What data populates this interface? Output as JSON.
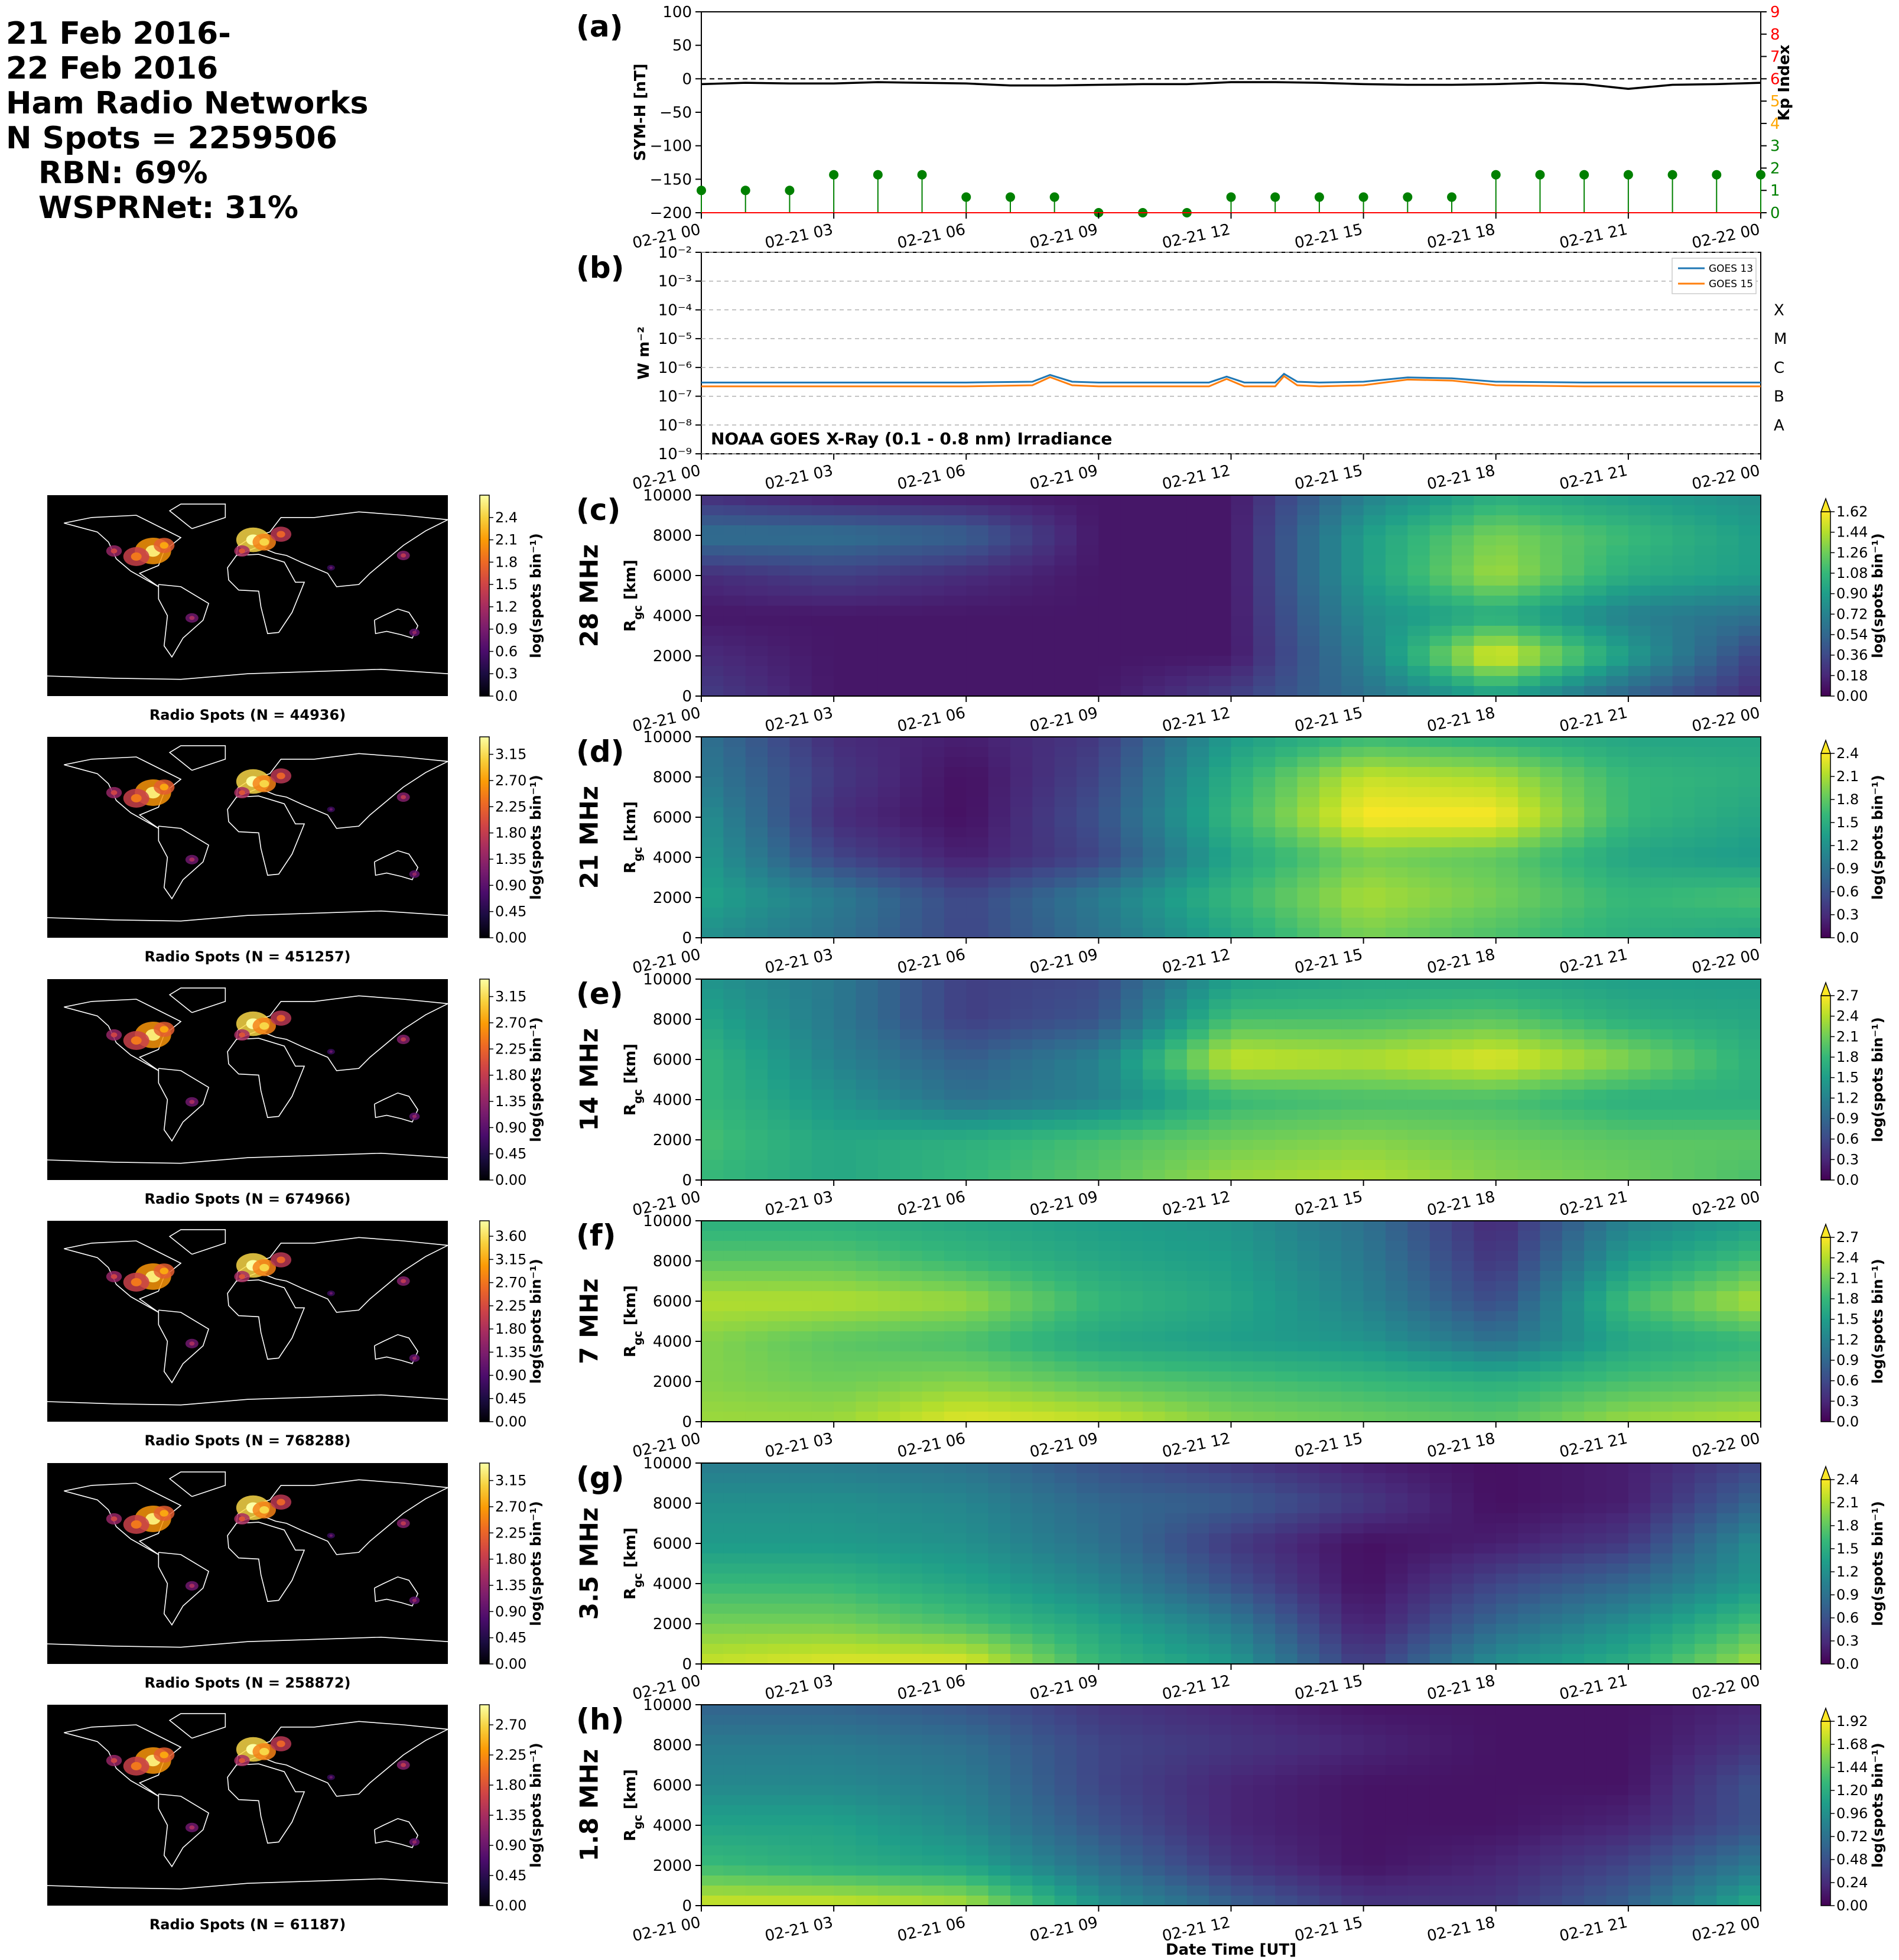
{
  "header": {
    "line1": "21 Feb 2016-",
    "line2": "22 Feb 2016",
    "line3": "Ham Radio Networks",
    "line4": "N Spots = 2259506",
    "line5": "RBN: 69%",
    "line6": "WSPRNet: 31%"
  },
  "colors": {
    "kp_bar": "#008000",
    "kp_axis": "#ff0000",
    "symh_line": "#000000",
    "goes13": "#1f77b4",
    "goes15": "#ff7f0e",
    "map_background": "#000000",
    "coastline": "#ffffff"
  },
  "time_ticks": [
    "02-21 00",
    "02-21 03",
    "02-21 06",
    "02-21 09",
    "02-21 12",
    "02-21 15",
    "02-21 18",
    "02-21 21",
    "02-22 00"
  ],
  "xlabel": "Date Time [UT]",
  "chart_data": [
    {
      "type": "line",
      "panel": "(a)",
      "ylabel": "SYM-H [nT]",
      "ylabel_right": "Kp Index",
      "ylim": [
        -200,
        100
      ],
      "yticks": [
        "100",
        "50",
        "0",
        "−50",
        "−100",
        "−150",
        "−200"
      ],
      "y2lim": [
        0,
        9
      ],
      "y2ticks": [
        "0",
        "1",
        "2",
        "3",
        "4",
        "5",
        "6",
        "7",
        "8",
        "9"
      ],
      "hline": 0,
      "symh_hours": [
        0,
        1,
        2,
        3,
        4,
        5,
        6,
        7,
        8,
        9,
        10,
        11,
        12,
        13,
        14,
        15,
        16,
        17,
        18,
        19,
        20,
        21,
        22,
        23,
        24
      ],
      "symh_values": [
        -8,
        -6,
        -7,
        -7,
        -5,
        -6,
        -7,
        -10,
        -10,
        -9,
        -8,
        -8,
        -5,
        -5,
        -6,
        -8,
        -9,
        -9,
        -8,
        -6,
        -8,
        -15,
        -9,
        -8,
        -6
      ],
      "kp_hours": [
        0,
        1,
        2,
        3,
        4,
        5,
        6,
        7,
        8,
        9,
        10,
        11,
        12,
        13,
        14,
        15,
        16,
        17,
        18,
        19,
        20,
        21,
        22,
        23,
        24
      ],
      "kp_values": [
        1,
        1,
        1,
        1.7,
        1.7,
        1.7,
        0.7,
        0.7,
        0.7,
        0,
        0,
        0,
        0.7,
        0.7,
        0.7,
        0.7,
        0.7,
        0.7,
        1.7,
        1.7,
        1.7,
        1.7,
        1.7,
        1.7,
        1.7
      ]
    },
    {
      "type": "line",
      "panel": "(b)",
      "title": "NOAA GOES X-Ray (0.1 - 0.8 nm) Irradiance",
      "ylabel": "W m⁻²",
      "yscale": "log",
      "ylim": [
        1e-09,
        0.01
      ],
      "yticks": [
        "10⁻²",
        "10⁻³",
        "10⁻⁴",
        "10⁻⁵",
        "10⁻⁶",
        "10⁻⁷",
        "10⁻⁸",
        "10⁻⁹"
      ],
      "flare_classes": [
        "X",
        "M",
        "C",
        "B",
        "A"
      ],
      "legend": "top-right",
      "series": [
        {
          "name": "GOES 13",
          "hours": [
            0,
            3,
            6,
            7.5,
            7.9,
            8.4,
            9,
            11.5,
            11.9,
            12.3,
            13,
            13.2,
            13.5,
            14,
            15,
            16,
            17,
            18,
            20,
            22,
            24
          ],
          "values": [
            3e-07,
            3e-07,
            3e-07,
            3.2e-07,
            5.5e-07,
            3.2e-07,
            3e-07,
            3e-07,
            4.8e-07,
            3e-07,
            3e-07,
            6e-07,
            3.2e-07,
            3e-07,
            3.2e-07,
            4.5e-07,
            4.2e-07,
            3.2e-07,
            3e-07,
            3e-07,
            3e-07
          ]
        },
        {
          "name": "GOES 15",
          "hours": [
            0,
            3,
            6,
            7.5,
            7.9,
            8.4,
            9,
            11.5,
            11.9,
            12.3,
            13,
            13.2,
            13.5,
            14,
            15,
            16,
            17,
            18,
            20,
            22,
            24
          ],
          "values": [
            2.2e-07,
            2.2e-07,
            2.2e-07,
            2.4e-07,
            4.6e-07,
            2.4e-07,
            2.2e-07,
            2.2e-07,
            4e-07,
            2.2e-07,
            2.2e-07,
            5e-07,
            2.4e-07,
            2.2e-07,
            2.4e-07,
            3.8e-07,
            3.5e-07,
            2.4e-07,
            2.2e-07,
            2.2e-07,
            2.2e-07
          ]
        }
      ]
    },
    {
      "type": "heatmap",
      "panel": "(c)",
      "band": "28 MHz",
      "ylabel": "R_gc [km]",
      "ylim": [
        0,
        10000
      ],
      "yticks": [
        "0",
        "2000",
        "4000",
        "6000",
        "8000",
        "10000"
      ],
      "cbar_label": "log(spots bin⁻¹)",
      "cbar_ticks": [
        "0.00",
        "0.18",
        "0.36",
        "0.54",
        "0.72",
        "0.90",
        "1.08",
        "1.26",
        "1.44",
        "1.62"
      ],
      "cmax": 1.62,
      "map_caption": "Radio Spots (N = 44936)",
      "map_cbar_ticks": [
        "0.0",
        "0.3",
        "0.6",
        "0.9",
        "1.2",
        "1.5",
        "1.8",
        "2.1",
        "2.4"
      ],
      "rgc_km": [
        0,
        2000,
        4000,
        6000,
        8000,
        10000
      ],
      "hours": [
        0,
        3,
        6,
        9,
        12,
        15,
        18,
        21,
        24
      ],
      "log_counts": [
        [
          0.3,
          0.1,
          0.1,
          0.1,
          0.3,
          0.6,
          0.9,
          0.5,
          0.2
        ],
        [
          0.2,
          0.1,
          0.1,
          0.1,
          0.1,
          0.7,
          1.6,
          0.9,
          0.3
        ],
        [
          0.1,
          0.1,
          0.1,
          0.1,
          0.1,
          0.8,
          1.0,
          0.7,
          0.6
        ],
        [
          0.2,
          0.3,
          0.2,
          0.1,
          0.1,
          0.9,
          1.4,
          1.0,
          0.9
        ],
        [
          0.6,
          0.6,
          0.5,
          0.1,
          0.1,
          0.9,
          1.3,
          1.1,
          0.9
        ],
        [
          0.2,
          0.1,
          0.1,
          0.1,
          0.1,
          0.7,
          1.0,
          0.9,
          0.8
        ]
      ]
    },
    {
      "type": "heatmap",
      "panel": "(d)",
      "band": "21 MHz",
      "ylabel": "R_gc [km]",
      "ylim": [
        0,
        10000
      ],
      "yticks": [
        "0",
        "2000",
        "4000",
        "6000",
        "8000",
        "10000"
      ],
      "cbar_label": "log(spots bin⁻¹)",
      "cbar_ticks": [
        "0.0",
        "0.3",
        "0.6",
        "0.9",
        "1.2",
        "1.5",
        "1.8",
        "2.1",
        "2.4"
      ],
      "cmax": 2.4,
      "map_caption": "Radio Spots (N = 451257)",
      "map_cbar_ticks": [
        "0.00",
        "0.45",
        "0.90",
        "1.35",
        "1.80",
        "2.25",
        "2.70",
        "3.15"
      ],
      "rgc_km": [
        0,
        2000,
        4000,
        6000,
        8000,
        10000
      ],
      "hours": [
        0,
        3,
        6,
        9,
        12,
        15,
        18,
        21,
        24
      ],
      "log_counts": [
        [
          1.2,
          0.9,
          0.5,
          0.9,
          1.4,
          1.9,
          1.7,
          1.5,
          1.4
        ],
        [
          1.4,
          1.0,
          0.5,
          1.0,
          1.6,
          2.1,
          1.9,
          1.6,
          1.7
        ],
        [
          1.3,
          0.5,
          0.2,
          0.5,
          1.4,
          1.9,
          1.8,
          1.4,
          1.3
        ],
        [
          1.2,
          0.3,
          0.1,
          0.6,
          1.6,
          2.4,
          2.4,
          1.6,
          1.4
        ],
        [
          1.0,
          0.4,
          0.1,
          0.5,
          1.5,
          2.2,
          2.1,
          1.6,
          1.5
        ],
        [
          0.9,
          0.3,
          0.2,
          0.4,
          1.3,
          1.6,
          1.5,
          1.4,
          1.4
        ]
      ]
    },
    {
      "type": "heatmap",
      "panel": "(e)",
      "band": "14 MHz",
      "ylabel": "R_gc [km]",
      "ylim": [
        0,
        10000
      ],
      "yticks": [
        "0",
        "2000",
        "4000",
        "6000",
        "8000",
        "10000"
      ],
      "cbar_label": "log(spots bin⁻¹)",
      "cbar_ticks": [
        "0.0",
        "0.3",
        "0.6",
        "0.9",
        "1.2",
        "1.5",
        "1.8",
        "2.1",
        "2.4",
        "2.7"
      ],
      "cmax": 2.7,
      "map_caption": "Radio Spots (N = 674966)",
      "map_cbar_ticks": [
        "0.00",
        "0.45",
        "0.90",
        "1.35",
        "1.80",
        "2.25",
        "2.70",
        "3.15"
      ],
      "rgc_km": [
        0,
        2000,
        4000,
        6000,
        8000,
        10000
      ],
      "hours": [
        0,
        3,
        6,
        9,
        12,
        15,
        18,
        21,
        24
      ],
      "log_counts": [
        [
          1.8,
          1.6,
          1.8,
          2.0,
          2.3,
          2.4,
          2.2,
          2.1,
          1.9
        ],
        [
          1.9,
          1.6,
          1.7,
          1.9,
          2.1,
          2.2,
          2.1,
          2.0,
          2.0
        ],
        [
          1.8,
          1.4,
          1.0,
          1.2,
          1.8,
          1.9,
          1.9,
          1.7,
          1.7
        ],
        [
          1.8,
          1.2,
          0.8,
          1.2,
          2.5,
          2.4,
          2.6,
          2.2,
          1.7
        ],
        [
          1.6,
          1.1,
          0.5,
          0.7,
          1.9,
          1.9,
          2.0,
          1.7,
          1.6
        ],
        [
          1.4,
          1.1,
          0.5,
          0.6,
          1.5,
          1.6,
          1.6,
          1.5,
          1.5
        ]
      ]
    },
    {
      "type": "heatmap",
      "panel": "(f)",
      "band": "7 MHz",
      "ylabel": "R_gc [km]",
      "ylim": [
        0,
        10000
      ],
      "yticks": [
        "0",
        "2000",
        "4000",
        "6000",
        "8000",
        "10000"
      ],
      "cbar_label": "log(spots bin⁻¹)",
      "cbar_ticks": [
        "0.0",
        "0.3",
        "0.6",
        "0.9",
        "1.2",
        "1.5",
        "1.8",
        "2.1",
        "2.4",
        "2.7"
      ],
      "cmax": 2.7,
      "map_caption": "Radio Spots (N = 768288)",
      "map_cbar_ticks": [
        "0.00",
        "0.45",
        "0.90",
        "1.35",
        "1.80",
        "2.25",
        "2.70",
        "3.15",
        "3.60"
      ],
      "rgc_km": [
        0,
        2000,
        4000,
        6000,
        8000,
        10000
      ],
      "hours": [
        0,
        3,
        6,
        9,
        12,
        15,
        18,
        21,
        24
      ],
      "log_counts": [
        [
          2.3,
          2.3,
          2.6,
          2.5,
          2.2,
          2.1,
          2.0,
          2.3,
          2.4
        ],
        [
          2.2,
          2.1,
          2.2,
          2.0,
          1.9,
          1.8,
          1.7,
          1.9,
          2.0
        ],
        [
          2.2,
          2.0,
          1.9,
          1.6,
          1.5,
          1.4,
          1.0,
          1.6,
          1.8
        ],
        [
          2.4,
          2.4,
          2.3,
          1.8,
          1.6,
          1.2,
          0.6,
          1.9,
          2.4
        ],
        [
          2.0,
          2.0,
          1.8,
          1.6,
          1.5,
          1.1,
          0.4,
          1.5,
          1.9
        ],
        [
          1.7,
          1.7,
          1.6,
          1.5,
          1.4,
          1.0,
          0.3,
          1.2,
          1.5
        ]
      ]
    },
    {
      "type": "heatmap",
      "panel": "(g)",
      "band": "3.5 MHz",
      "ylabel": "R_gc [km]",
      "ylim": [
        0,
        10000
      ],
      "yticks": [
        "0",
        "2000",
        "4000",
        "6000",
        "8000",
        "10000"
      ],
      "cbar_label": "log(spots bin⁻¹)",
      "cbar_ticks": [
        "0.0",
        "0.3",
        "0.6",
        "0.9",
        "1.2",
        "1.5",
        "1.8",
        "2.1",
        "2.4"
      ],
      "cmax": 2.4,
      "map_caption": "Radio Spots (N = 258872)",
      "map_cbar_ticks": [
        "0.00",
        "0.45",
        "0.90",
        "1.35",
        "1.80",
        "2.25",
        "2.70",
        "3.15"
      ],
      "rgc_km": [
        0,
        2000,
        4000,
        6000,
        8000,
        10000
      ],
      "hours": [
        0,
        3,
        6,
        9,
        12,
        15,
        18,
        21,
        24
      ],
      "log_counts": [
        [
          2.2,
          2.3,
          2.3,
          1.6,
          1.3,
          0.4,
          1.2,
          1.5,
          2.1
        ],
        [
          1.9,
          1.9,
          1.7,
          1.4,
          1.0,
          0.2,
          0.8,
          1.2,
          1.7
        ],
        [
          1.6,
          1.6,
          1.4,
          1.1,
          0.6,
          0.1,
          0.5,
          0.8,
          1.3
        ],
        [
          1.3,
          1.3,
          1.2,
          0.9,
          0.4,
          0.1,
          0.2,
          0.4,
          1.2
        ],
        [
          1.2,
          1.2,
          1.1,
          0.8,
          0.7,
          0.4,
          0.1,
          0.2,
          0.8
        ],
        [
          1.0,
          1.0,
          0.9,
          0.6,
          0.4,
          0.2,
          0.1,
          0.2,
          0.5
        ]
      ]
    },
    {
      "type": "heatmap",
      "panel": "(h)",
      "band": "1.8 MHz",
      "ylabel": "R_gc [km]",
      "ylim": [
        0,
        10000
      ],
      "yticks": [
        "0",
        "2000",
        "4000",
        "6000",
        "8000",
        "10000"
      ],
      "cbar_label": "log(spots bin⁻¹)",
      "cbar_ticks": [
        "0.00",
        "0.24",
        "0.48",
        "0.72",
        "0.96",
        "1.20",
        "1.44",
        "1.68",
        "1.92"
      ],
      "cmax": 1.92,
      "map_caption": "Radio Spots (N = 61187)",
      "map_cbar_ticks": [
        "0.00",
        "0.45",
        "0.90",
        "1.35",
        "1.80",
        "2.25",
        "2.70"
      ],
      "rgc_km": [
        0,
        2000,
        4000,
        6000,
        8000,
        10000
      ],
      "hours": [
        0,
        3,
        6,
        9,
        12,
        15,
        18,
        21,
        24
      ],
      "log_counts": [
        [
          1.8,
          1.8,
          1.7,
          1.0,
          0.6,
          0.3,
          0.3,
          0.6,
          1.2
        ],
        [
          1.3,
          1.2,
          1.1,
          0.7,
          0.3,
          0.1,
          0.2,
          0.4,
          0.8
        ],
        [
          1.1,
          1.1,
          0.9,
          0.5,
          0.2,
          0.1,
          0.1,
          0.2,
          0.5
        ],
        [
          0.9,
          0.9,
          0.8,
          0.4,
          0.2,
          0.1,
          0.1,
          0.1,
          0.5
        ],
        [
          0.8,
          0.8,
          0.7,
          0.4,
          0.3,
          0.2,
          0.1,
          0.1,
          0.3
        ],
        [
          0.6,
          0.6,
          0.5,
          0.3,
          0.2,
          0.1,
          0.1,
          0.1,
          0.2
        ]
      ]
    }
  ]
}
